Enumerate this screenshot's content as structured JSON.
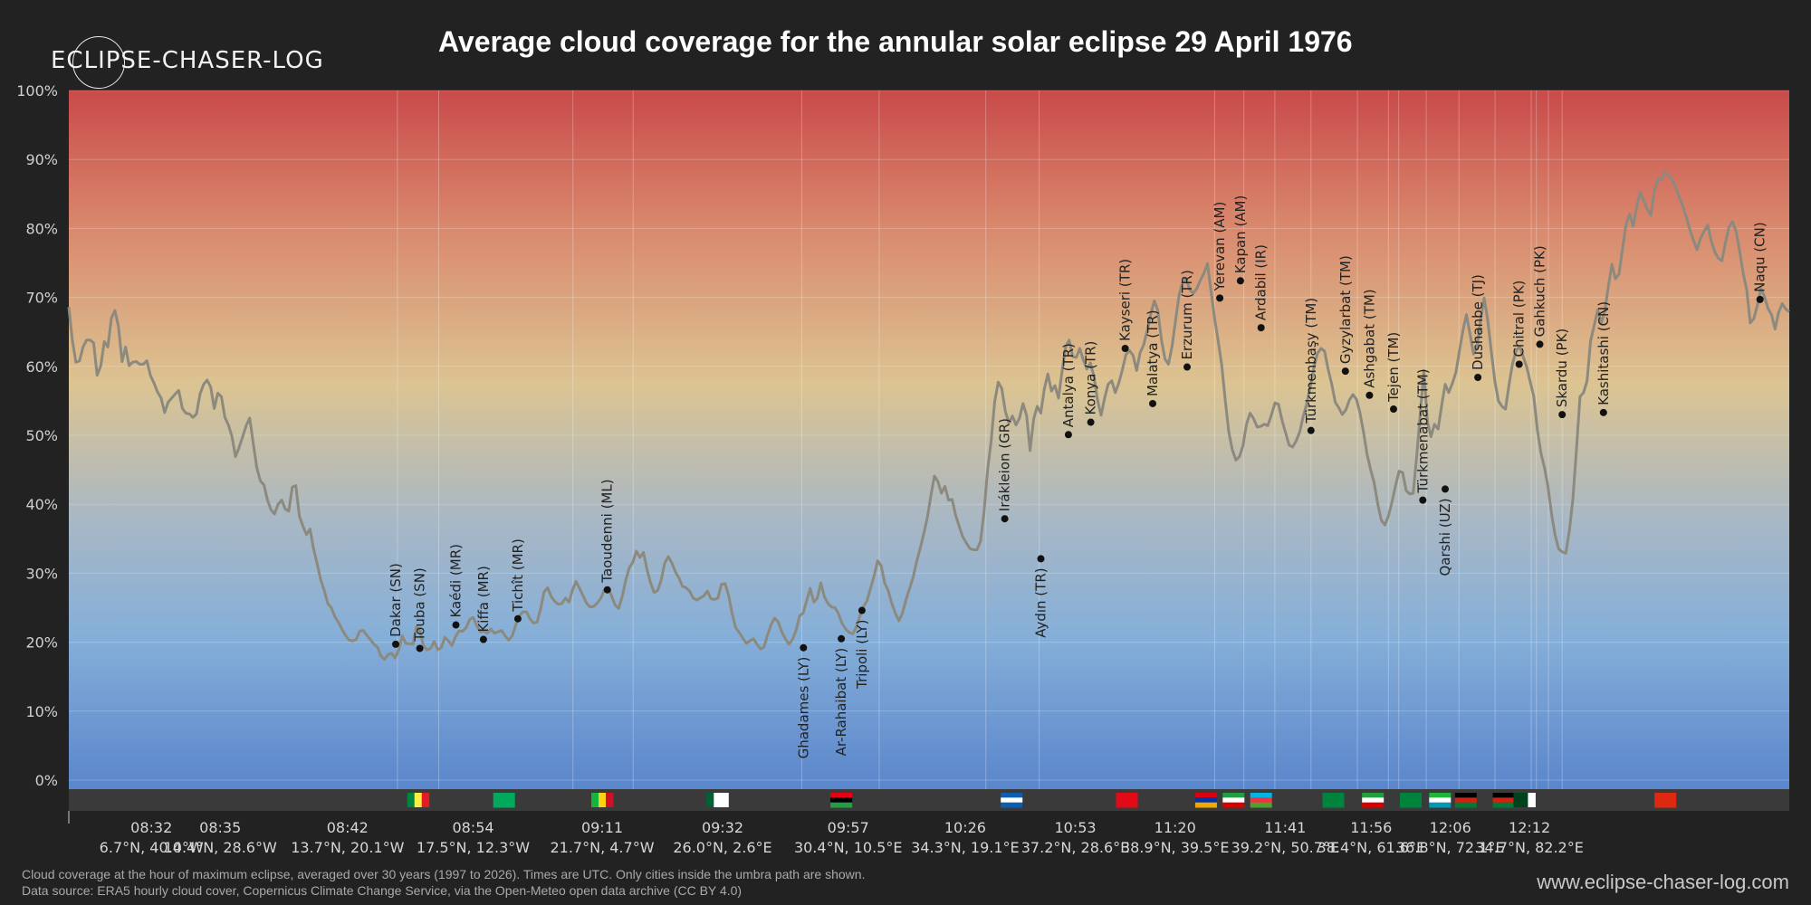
{
  "brand": {
    "logo_text": "ECLIPSE-CHASER-LOG",
    "site": "www.eclipse-chaser-log.com"
  },
  "chart_data": {
    "type": "line",
    "title": "Average cloud coverage for the annular solar eclipse 29 April 1976",
    "xlabel": "",
    "ylabel": "",
    "ylim": [
      0,
      100
    ],
    "y_ticks": [
      "0%",
      "10%",
      "20%",
      "30%",
      "40%",
      "50%",
      "60%",
      "70%",
      "80%",
      "90%",
      "100%"
    ],
    "x_ticks": [
      {
        "time": "08:32",
        "coord": "6.7°N, 40.4°W"
      },
      {
        "time": "08:35",
        "coord": "10.4°N, 28.6°W"
      },
      {
        "time": "08:42",
        "coord": "13.7°N, 20.1°W"
      },
      {
        "time": "08:54",
        "coord": "17.5°N, 12.3°W"
      },
      {
        "time": "09:11",
        "coord": "21.7°N, 4.7°W"
      },
      {
        "time": "09:32",
        "coord": "26.0°N, 2.6°E"
      },
      {
        "time": "09:57",
        "coord": "30.4°N, 10.5°E"
      },
      {
        "time": "10:26",
        "coord": "34.3°N, 19.1°E"
      },
      {
        "time": "10:53",
        "coord": "37.2°N, 28.6°E"
      },
      {
        "time": "11:20",
        "coord": "38.9°N, 39.5°E"
      },
      {
        "time": "11:41",
        "coord": "39.2°N, 50.7°E"
      },
      {
        "time": "11:56",
        "coord": "38.4°N, 61.6°E"
      },
      {
        "time": "12:06",
        "coord": "36.8°N, 72.1°E"
      },
      {
        "time": "12:12",
        "coord": "34.7°N, 82.2°E"
      }
    ],
    "series": [
      {
        "values": [
          68.6,
          63.8,
          60.6,
          60.8,
          62.8,
          63.8,
          63.8,
          63.4,
          58.7,
          60.1,
          63.6,
          62.8,
          67,
          68.1,
          65.8,
          60.7,
          62.8,
          60.1,
          60.6,
          60.7,
          60.3,
          60.3,
          60.8,
          58.7,
          57.6,
          56.3,
          55.4,
          53.3,
          54.8,
          55.4,
          56,
          56.5,
          53.9,
          53.2,
          53.1,
          52.6,
          53.1,
          56,
          57.4,
          58,
          57,
          53.9,
          56.1,
          55.6,
          52.6,
          51.5,
          49.8,
          46.9,
          48.2,
          49.8,
          51.4,
          52.5,
          48.8,
          45.3,
          43.4,
          42.8,
          40.6,
          39.2,
          38.6,
          40,
          40.6,
          39.3,
          39,
          42.5,
          42.7,
          38.3,
          36.8,
          35.6,
          36.4,
          33.5,
          31.4,
          29.1,
          27.5,
          25.6,
          25,
          23.7,
          22.9,
          21.9,
          21,
          20.3,
          20.2,
          20.4,
          21.6,
          21.7,
          21,
          20.4,
          19.7,
          19.3,
          18,
          17.5,
          18.2,
          18.4,
          17.7,
          18.9,
          20.9,
          19.8,
          19.8,
          19.7,
          22.2,
          21.6,
          19.4,
          18.9,
          19.1,
          20.1,
          18.9,
          19.2,
          20.7,
          20.2,
          19.5,
          20.8,
          21.6,
          21.6,
          22.1,
          23.3,
          23.6,
          22.4,
          21.5,
          21.6,
          21.3,
          21.9,
          21.3,
          21.5,
          21.7,
          20.9,
          20.3,
          20.9,
          22.5,
          23.8,
          24.4,
          24.4,
          23.4,
          22.8,
          22.9,
          24.8,
          27.3,
          27.9,
          26.6,
          25.9,
          25.5,
          25.6,
          26.4,
          25.8,
          27.6,
          28.8,
          27.8,
          26.7,
          25.6,
          25.1,
          25.2,
          25.7,
          26.4,
          27.6,
          27.8,
          26.7,
          25.4,
          24.9,
          26.6,
          29,
          30.8,
          31.6,
          33.2,
          32.3,
          33,
          30.5,
          28.6,
          27.2,
          27.5,
          29,
          31.5,
          32.4,
          31.5,
          30.2,
          29.3,
          28.1,
          27.9,
          27.4,
          26.4,
          26.1,
          26.4,
          26.7,
          27.4,
          26.3,
          26.2,
          26.4,
          28.4,
          28.5,
          26.8,
          24.1,
          22.1,
          21.4,
          20.6,
          19.8,
          20.2,
          20.5,
          19.7,
          19,
          19.3,
          21.1,
          22.6,
          23.5,
          22.9,
          21.5,
          20.5,
          19.7,
          20.4,
          21.7,
          23.8,
          24.2,
          26,
          27.8,
          25.8,
          26.4,
          28.6,
          26.6,
          25.6,
          25.1,
          25,
          24.1,
          22.7,
          21.9,
          21.4,
          21.2,
          22.2,
          23.8,
          25.1,
          26,
          27.8,
          29.6,
          31.8,
          31.1,
          28.6,
          27.5,
          25.6,
          24.2,
          23.1,
          24.2,
          26.1,
          27.8,
          29.4,
          31.7,
          33.6,
          35.7,
          38,
          41.2,
          44.1,
          43.3,
          41.6,
          42.6,
          40.6,
          40.7,
          38.4,
          36.8,
          35.3,
          34.4,
          33.6,
          33.4,
          33.4,
          34.6,
          38.8,
          44.9,
          49.2,
          54.9,
          57.7,
          56.8,
          53.5,
          51.8,
          52.8,
          51.5,
          52.5,
          54.6,
          52.9,
          47.8,
          52.4,
          54.2,
          53.2,
          56.7,
          58.9,
          56.4,
          57.2,
          55.4,
          59.3,
          62.8,
          63.8,
          61.4,
          61.3,
          62.6,
          60.9,
          59.6,
          60.5,
          58.5,
          55.1,
          52.9,
          55.4,
          57.4,
          57.9,
          56.2,
          57.6,
          59.5,
          61.7,
          62.3,
          61.6,
          59.4,
          62,
          63.1,
          65.2,
          67.6,
          69.5,
          68.1,
          63.9,
          61.1,
          60.3,
          62.9,
          66.7,
          70.4,
          72.2,
          72.7,
          71.1,
          70.6,
          71.3,
          72.5,
          73.5,
          74.9,
          70.9,
          66.9,
          63.7,
          60.2,
          55.1,
          50.5,
          47.9,
          46.4,
          46.9,
          48.5,
          51.6,
          53.2,
          52.4,
          51.2,
          51.3,
          51.6,
          51.4,
          52.9,
          54.7,
          54.5,
          52.2,
          50.4,
          48.6,
          48.3,
          49.2,
          50.5,
          52.8,
          54.6,
          57.1,
          59.9,
          61.9,
          62.6,
          62.2,
          59.6,
          57.5,
          54.8,
          54,
          53,
          53.7,
          55.1,
          55.9,
          55.2,
          53.2,
          50.4,
          47.2,
          45,
          43.1,
          40,
          37.7,
          37,
          38.3,
          40.3,
          42.7,
          44.8,
          44.6,
          42,
          41.5,
          41.6,
          47.2,
          53.4,
          59.4,
          52,
          49.8,
          51.6,
          50.9,
          54.3,
          57.4,
          56.2,
          57.5,
          59.1,
          62.2,
          65.2,
          67.5,
          64.7,
          61.8,
          62.8,
          66.9,
          69.9,
          66.7,
          62.2,
          57.9,
          55,
          54.2,
          53.8,
          57.3,
          60.4,
          62.3,
          62.9,
          61.4,
          59.9,
          57.7,
          55.6,
          50.7,
          47.4,
          45.3,
          42.5,
          38.6,
          35.5,
          33.5,
          33.1,
          32.9,
          36.1,
          40.7,
          47.8,
          55.6,
          56.2,
          57.9,
          63.7,
          65.9,
          68.2,
          66.3,
          68,
          71.6,
          74.8,
          72.7,
          73.4,
          77.1,
          80.6,
          82.1,
          80.3,
          83.1,
          85.3,
          84,
          82.8,
          81.9,
          85.5,
          87.2,
          87.1,
          88.2,
          87.7,
          87.1,
          85.9,
          84.5,
          83.2,
          81.6,
          79.8,
          78.3,
          76.9,
          78.6,
          79.6,
          80.5,
          78.2,
          76.6,
          75.7,
          75.3,
          77.9,
          80.2,
          81,
          79.6,
          76.7,
          73.5,
          71.1,
          66.3,
          66.9,
          68.8,
          71.3,
          70.1,
          68.4,
          67.5,
          65.4,
          67.8,
          69.1,
          68.3,
          67.9
        ]
      }
    ],
    "cities": [
      {
        "name": "Dakar (SN)",
        "x": 0.19,
        "y": 19.7
      },
      {
        "name": "Touba (SN)",
        "x": 0.204,
        "y": 19.1
      },
      {
        "name": "Kaédi (MR)",
        "x": 0.225,
        "y": 22.5
      },
      {
        "name": "Kiffa (MR)",
        "x": 0.241,
        "y": 20.4
      },
      {
        "name": "Tichît (MR)",
        "x": 0.261,
        "y": 23.4
      },
      {
        "name": "Taoudenni (ML)",
        "x": 0.313,
        "y": 27.6
      },
      {
        "name": "Ghadames (LY)",
        "x": 0.427,
        "y": 19.2
      },
      {
        "name": "Ar-Rahaibat (LY)",
        "x": 0.449,
        "y": 20.5
      },
      {
        "name": "Tripoli (LY)",
        "x": 0.461,
        "y": 24.6
      },
      {
        "name": "Irákleion (GR)",
        "x": 0.544,
        "y": 37.9
      },
      {
        "name": "Aydın (TR)",
        "x": 0.565,
        "y": 32.1
      },
      {
        "name": "Antalya (TR)",
        "x": 0.581,
        "y": 50.1
      },
      {
        "name": "Konya (TR)",
        "x": 0.594,
        "y": 51.9
      },
      {
        "name": "Kayseri (TR)",
        "x": 0.614,
        "y": 62.6
      },
      {
        "name": "Malatya (TR)",
        "x": 0.63,
        "y": 54.6
      },
      {
        "name": "Erzurum (TR)",
        "x": 0.65,
        "y": 59.9
      },
      {
        "name": "Yerevan (AM)",
        "x": 0.669,
        "y": 69.9
      },
      {
        "name": "Kapan (AM)",
        "x": 0.681,
        "y": 72.4
      },
      {
        "name": "Ardabil (IR)",
        "x": 0.693,
        "y": 65.6
      },
      {
        "name": "Türkmenbaşy (TM)",
        "x": 0.722,
        "y": 50.7
      },
      {
        "name": "Gyzylarbat (TM)",
        "x": 0.742,
        "y": 59.3
      },
      {
        "name": "Ashgabat (TM)",
        "x": 0.756,
        "y": 55.8
      },
      {
        "name": "Tejen (TM)",
        "x": 0.77,
        "y": 53.8
      },
      {
        "name": "Türkmenabat (TM)",
        "x": 0.787,
        "y": 40.6
      },
      {
        "name": "Qarshi (UZ)",
        "x": 0.8,
        "y": 42.2
      },
      {
        "name": "Dushanbe (TJ)",
        "x": 0.819,
        "y": 58.4
      },
      {
        "name": "Chitral (PK)",
        "x": 0.843,
        "y": 60.3
      },
      {
        "name": "Gahkuch (PK)",
        "x": 0.855,
        "y": 63.2
      },
      {
        "name": "Skardu (PK)",
        "x": 0.868,
        "y": 53
      },
      {
        "name": "Kashitashi (CN)",
        "x": 0.892,
        "y": 53.3
      },
      {
        "name": "Naqu (CN)",
        "x": 0.983,
        "y": 69.7
      }
    ],
    "below_labels": [
      "Aydın (TR)",
      "Qarshi (UZ)",
      "Ghadames (LY)",
      "Ar-Rahaibat (LY)",
      "Tripoli (LY)"
    ],
    "country_bands": [
      0.191,
      0.215,
      0.293,
      0.328,
      0.426,
      0.471,
      0.533,
      0.564,
      0.666,
      0.683,
      0.701,
      0.722,
      0.749,
      0.767,
      0.773,
      0.789,
      0.808,
      0.829,
      0.85,
      0.86,
      0.853,
      0.868
    ],
    "flags": [
      {
        "country": "SN",
        "x": 0.203
      },
      {
        "country": "MR",
        "x": 0.253
      },
      {
        "country": "ML",
        "x": 0.31
      },
      {
        "country": "DZ",
        "x": 0.377
      },
      {
        "country": "LY",
        "x": 0.449
      },
      {
        "country": "GR",
        "x": 0.548
      },
      {
        "country": "TR",
        "x": 0.615
      },
      {
        "country": "AM",
        "x": 0.661
      },
      {
        "country": "IR",
        "x": 0.677
      },
      {
        "country": "AZ",
        "x": 0.693
      },
      {
        "country": "TM",
        "x": 0.735
      },
      {
        "country": "IR",
        "x": 0.758
      },
      {
        "country": "TM",
        "x": 0.78
      },
      {
        "country": "UZ",
        "x": 0.797
      },
      {
        "country": "AF",
        "x": 0.812
      },
      {
        "country": "AF",
        "x": 0.834
      },
      {
        "country": "PK",
        "x": 0.846
      },
      {
        "country": "CN",
        "x": 0.928
      }
    ],
    "tick_positions": [
      0.048,
      0.088,
      0.162,
      0.235,
      0.31,
      0.38,
      0.453,
      0.521,
      0.585,
      0.643,
      0.707,
      0.757,
      0.803,
      0.849
    ]
  },
  "footnote": {
    "line1": "Cloud coverage at the hour of maximum eclipse, averaged over 30 years (1997 to 2026). Times are UTC. Only cities inside the umbra path are shown.",
    "line2": "Data source: ERA5 hourly cloud cover, Copernicus Climate Change Service, via the Open-Meteo open data archive (CC BY 4.0)"
  }
}
